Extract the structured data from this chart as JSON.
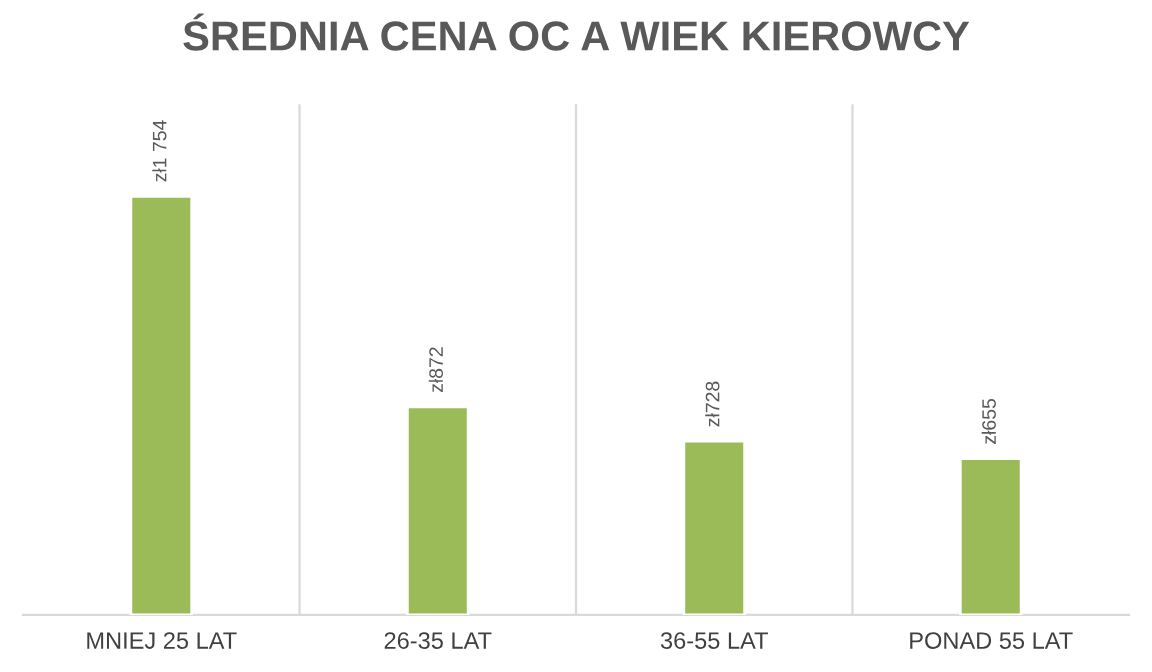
{
  "chart_data": {
    "type": "bar",
    "title": "ŚREDNIA CENA OC A WIEK KIEROWCY",
    "categories": [
      "MNIEJ 25 LAT",
      "26-35 LAT",
      "36-55 LAT",
      "PONAD 55 LAT"
    ],
    "values": [
      1754,
      872,
      728,
      655
    ],
    "value_labels": [
      "zł1 754",
      "zł872",
      "zł728",
      "zł655"
    ],
    "color": "#9bbb59",
    "grid": "x",
    "legend": false
  }
}
